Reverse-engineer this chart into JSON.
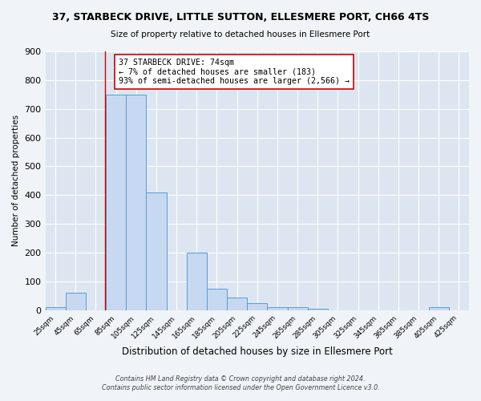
{
  "title": "37, STARBECK DRIVE, LITTLE SUTTON, ELLESMERE PORT, CH66 4TS",
  "subtitle": "Size of property relative to detached houses in Ellesmere Port",
  "xlabel": "Distribution of detached houses by size in Ellesmere Port",
  "ylabel": "Number of detached properties",
  "bar_heights": [
    10,
    60,
    0,
    750,
    750,
    410,
    0,
    200,
    75,
    45,
    25,
    10,
    10,
    5,
    0,
    0,
    0,
    0,
    0,
    10,
    0
  ],
  "bin_lefts": [
    15,
    35,
    55,
    75,
    95,
    115,
    135,
    155,
    175,
    195,
    215,
    235,
    255,
    275,
    295,
    315,
    335,
    355,
    375,
    395,
    415
  ],
  "bin_width": 20,
  "tick_labels": [
    "25sqm",
    "45sqm",
    "65sqm",
    "85sqm",
    "105sqm",
    "125sqm",
    "145sqm",
    "165sqm",
    "185sqm",
    "205sqm",
    "225sqm",
    "245sqm",
    "265sqm",
    "285sqm",
    "305sqm",
    "325sqm",
    "345sqm",
    "365sqm",
    "385sqm",
    "405sqm",
    "425sqm"
  ],
  "tick_positions": [
    25,
    45,
    65,
    85,
    105,
    125,
    145,
    165,
    185,
    205,
    225,
    245,
    265,
    285,
    305,
    325,
    345,
    365,
    385,
    405,
    425
  ],
  "ylim": [
    0,
    900
  ],
  "yticks": [
    0,
    100,
    200,
    300,
    400,
    500,
    600,
    700,
    800,
    900
  ],
  "bar_color": "#c6d9f0",
  "bar_edge_color": "#5b9bd5",
  "property_line_x": 74,
  "property_line_color": "#cc0000",
  "annotation_title": "37 STARBECK DRIVE: 74sqm",
  "annotation_line1": "← 7% of detached houses are smaller (183)",
  "annotation_line2": "93% of semi-detached houses are larger (2,566) →",
  "annotation_box_color": "#ffffff",
  "annotation_border_color": "#cc0000",
  "bg_color": "#dde6f0",
  "fig_bg_color": "#f0f4f8",
  "footer1": "Contains HM Land Registry data © Crown copyright and database right 2024.",
  "footer2": "Contains public sector information licensed under the Open Government Licence v3.0."
}
